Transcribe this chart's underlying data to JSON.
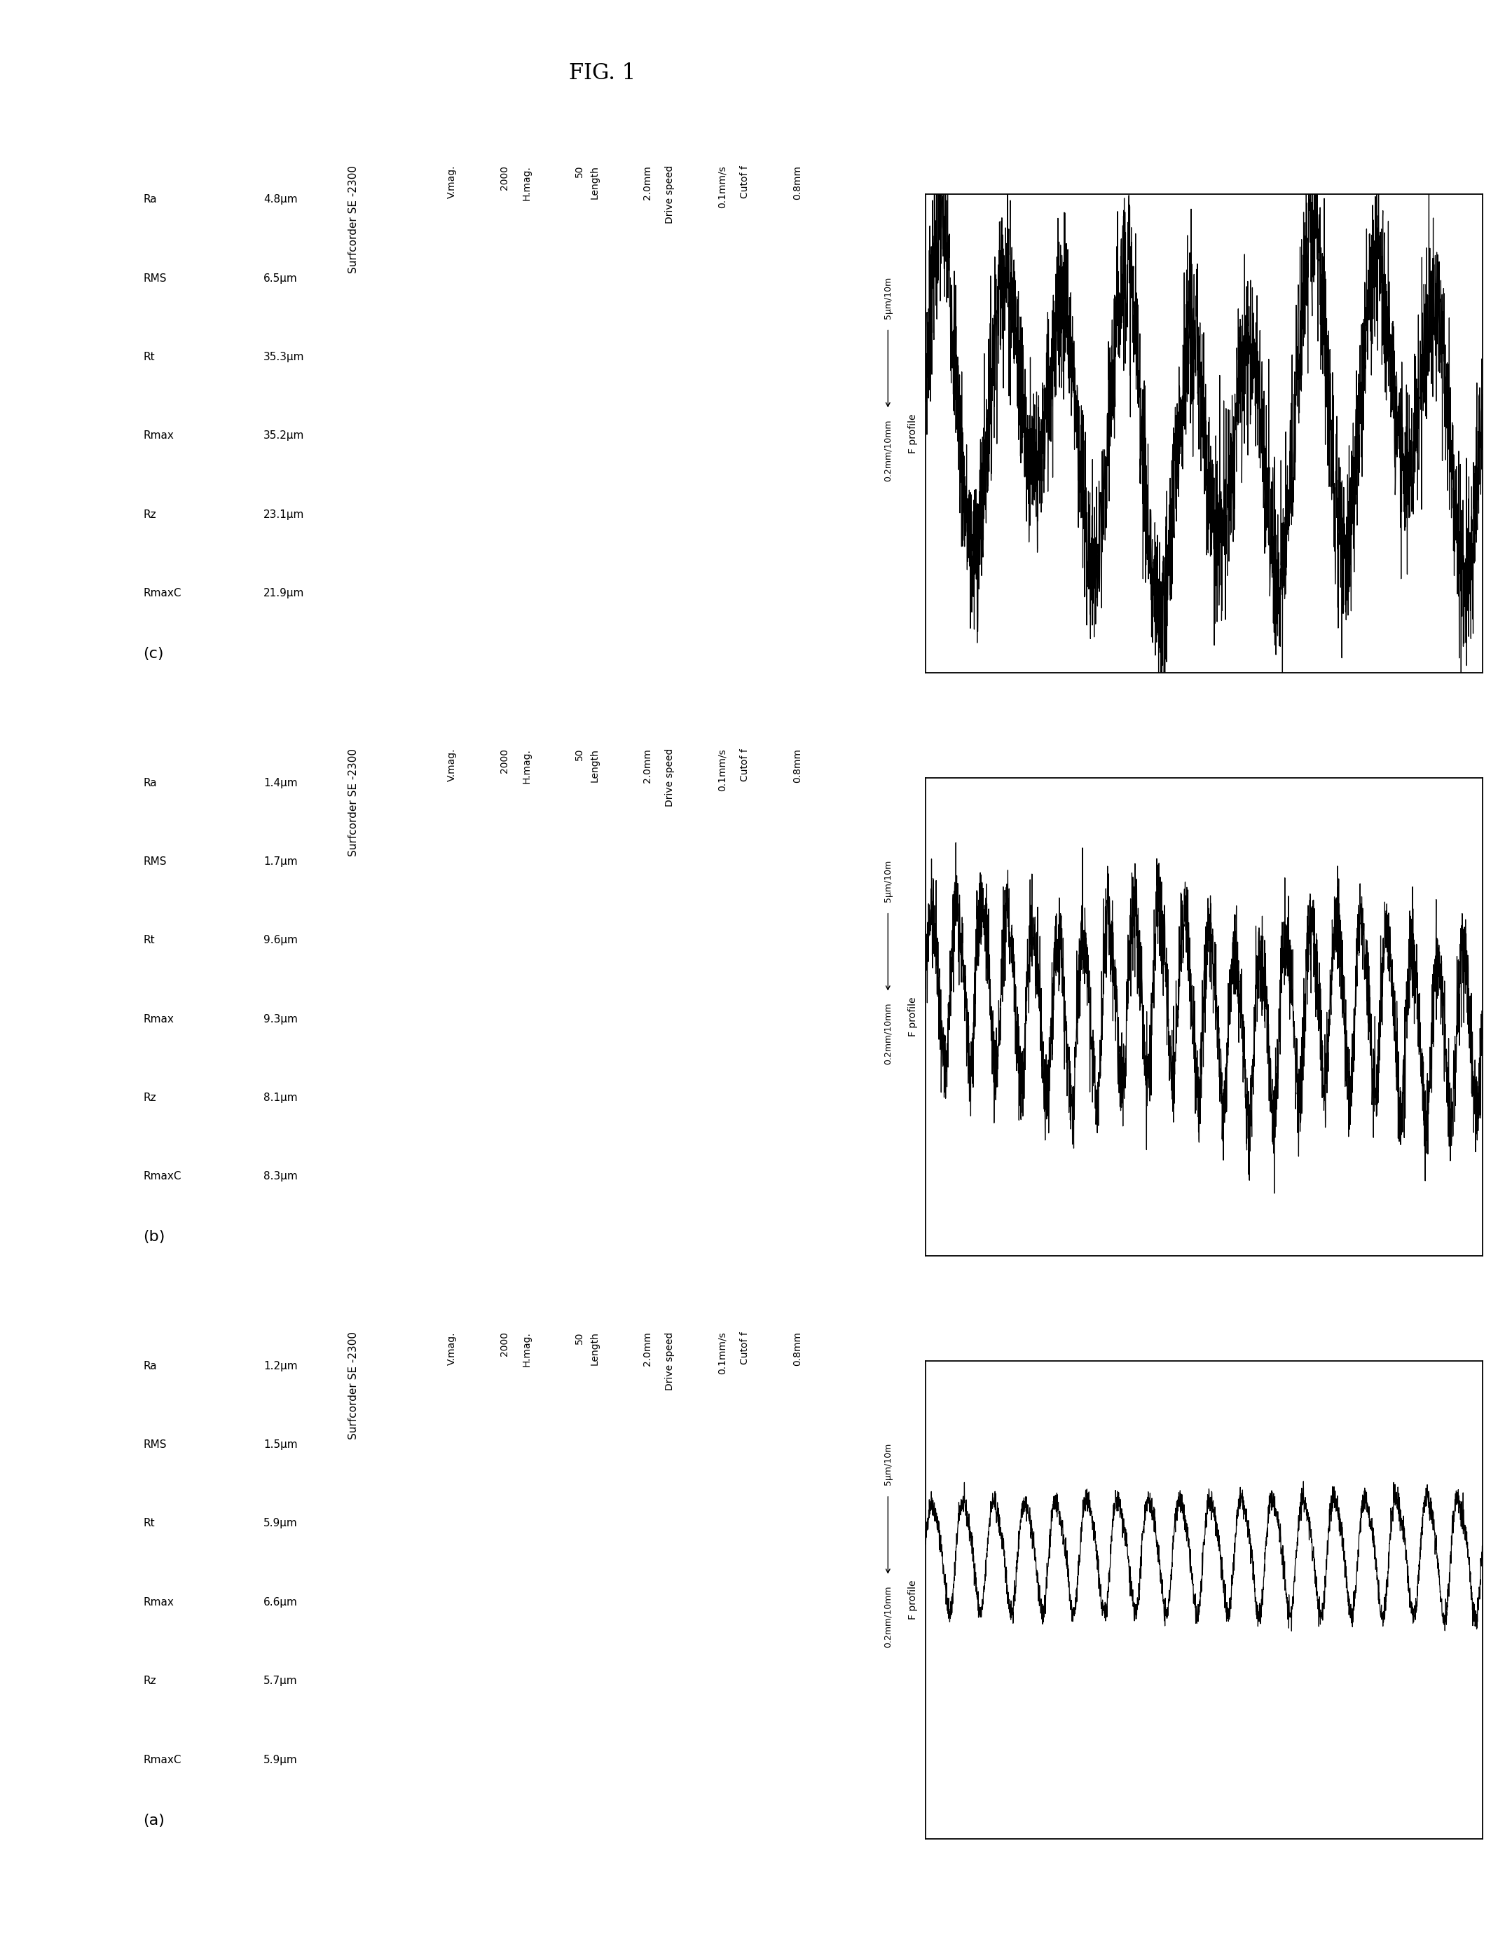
{
  "title": "FIG. 1",
  "panels": [
    {
      "label": "(a)",
      "instrument": "Surfcorder SE -2300",
      "params": [
        [
          "V.mag.",
          "2000"
        ],
        [
          "H.mag.",
          "50"
        ],
        [
          "Length",
          "2.0mm"
        ],
        [
          "Drive speed",
          "0.1mm/s"
        ],
        [
          "Cutof f",
          "0.8mm"
        ]
      ],
      "measurements": [
        [
          "Ra",
          "1.2μm"
        ],
        [
          "RMS",
          "1.5μm"
        ],
        [
          "Rt",
          "5.9μm"
        ],
        [
          "Rmax",
          "6.6μm"
        ],
        [
          "Rz",
          "5.7μm"
        ],
        [
          "RmaxC",
          "5.9μm"
        ]
      ],
      "scale_v": "5μm/10m",
      "scale_h": "0.2mm/10mm",
      "wave_seed": 42,
      "wave_amp": 0.22,
      "wave_freq": 18,
      "wave_noise": 0.025,
      "wave_extra_amp": 0.04,
      "wave_extra_freq": 36
    },
    {
      "label": "(b)",
      "instrument": "Surfcorder SE -2300",
      "params": [
        [
          "V.mag.",
          "2000"
        ],
        [
          "H.mag.",
          "50"
        ],
        [
          "Length",
          "2.0mm"
        ],
        [
          "Drive speed",
          "0.1mm/s"
        ],
        [
          "Cutof f",
          "0.8mm"
        ]
      ],
      "measurements": [
        [
          "Ra",
          "1.4μm"
        ],
        [
          "RMS",
          "1.7μm"
        ],
        [
          "Rt",
          "9.6μm"
        ],
        [
          "Rmax",
          "9.3μm"
        ],
        [
          "Rz",
          "8.1μm"
        ],
        [
          "RmaxC",
          "8.3μm"
        ]
      ],
      "scale_v": "5μm/10m",
      "scale_h": "0.2mm/10mm",
      "wave_seed": 99,
      "wave_amp": 0.35,
      "wave_freq": 22,
      "wave_noise": 0.1,
      "wave_extra_amp": 0.05,
      "wave_extra_freq": 44
    },
    {
      "label": "(c)",
      "instrument": "Surfcorder SE -2300",
      "params": [
        [
          "V.mag.",
          "2000"
        ],
        [
          "H.mag.",
          "50"
        ],
        [
          "Length",
          "2.0mm"
        ],
        [
          "Drive speed",
          "0.1mm/s"
        ],
        [
          "Cutof f",
          "0.8mm"
        ]
      ],
      "measurements": [
        [
          "Ra",
          "4.8μm"
        ],
        [
          "RMS",
          "6.5μm"
        ],
        [
          "Rt",
          "35.3μm"
        ],
        [
          "Rmax",
          "35.2μm"
        ],
        [
          "Rz",
          "23.1μm"
        ],
        [
          "RmaxC",
          "21.9μm"
        ]
      ],
      "scale_v": "5μm/10m",
      "scale_h": "0.2mm/10mm",
      "wave_seed": 7,
      "wave_amp": 0.55,
      "wave_freq": 9,
      "wave_noise": 0.18,
      "wave_extra_amp": 0.2,
      "wave_extra_freq": 6
    }
  ],
  "bg_color": "#ffffff",
  "text_color": "#000000",
  "line_color": "#000000",
  "title_fontsize": 22,
  "label_fontsize": 16,
  "instrument_fontsize": 11,
  "param_fontsize": 10,
  "meas_fontsize": 11,
  "scale_fontsize": 9
}
